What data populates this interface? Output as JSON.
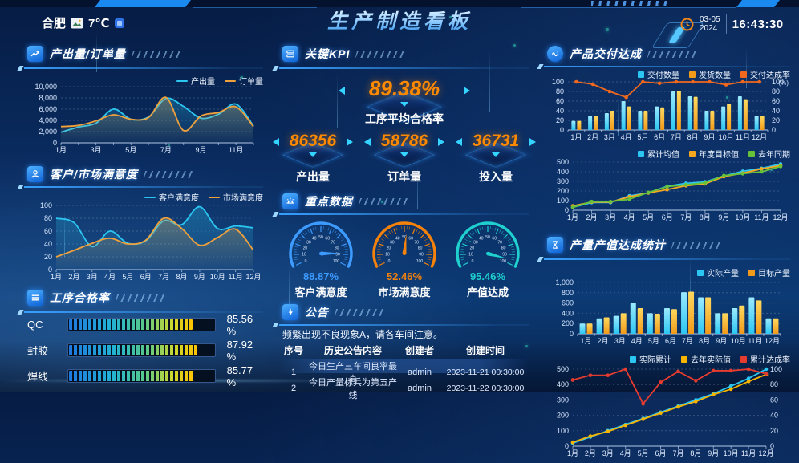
{
  "header": {
    "city": "合肥",
    "temperature": "7℃",
    "title": "生产制造看板",
    "date": "03-05",
    "year": "2024",
    "time": "16:43:30"
  },
  "panels": {
    "output_orders": {
      "title": "产出量/订单量"
    },
    "satisfaction": {
      "title": "客户/市场满意度"
    },
    "pass_rate": {
      "title": "工序合格率"
    },
    "kpi": {
      "title": "关键KPI",
      "main": {
        "value": "89.38%",
        "label": "工序平均合格率"
      },
      "items": [
        {
          "value": "86356",
          "label": "产出量"
        },
        {
          "value": "58786",
          "label": "订单量"
        },
        {
          "value": "36731",
          "label": "投入量"
        }
      ]
    },
    "key_data": {
      "title": "重点数据",
      "gauges": [
        {
          "value": 88.87,
          "display": "88.87%",
          "label": "客户满意度",
          "color": "#3d9bff"
        },
        {
          "value": 52.46,
          "display": "52.46%",
          "label": "市场满意度",
          "color": "#f5820b"
        },
        {
          "value": 95.46,
          "display": "95.46%",
          "label": "产值达成",
          "color": "#1fd0cf"
        }
      ]
    },
    "notice": {
      "title": "公告",
      "marquee": "频繁出现不良现象A，请各车间注意。",
      "table": {
        "headers": [
          "序号",
          "历史公告内容",
          "创建者",
          "创建时间"
        ],
        "rows": [
          [
            "1",
            "今日生产三车间良率最高",
            "admin",
            "2023-11-21 00:30:00"
          ],
          [
            "2",
            "今日产量标兵为第五产线",
            "admin",
            "2023-11-22 00:30:00"
          ]
        ]
      }
    },
    "delivery": {
      "title": "产品交付达成"
    },
    "production": {
      "title": "产量产值达成统计"
    }
  },
  "process_rates": [
    {
      "label": "QC",
      "pct": 85.56,
      "display": "85.56 %"
    },
    {
      "label": "封胶",
      "pct": 87.92,
      "display": "87.92 %"
    },
    {
      "label": "焊线",
      "pct": 85.77,
      "display": "85.77 %"
    }
  ],
  "chart_data": [
    {
      "id": "output_orders",
      "type": "line",
      "title": "产出量/订单量",
      "categories": [
        "1月",
        "2月",
        "3月",
        "4月",
        "5月",
        "6月",
        "7月",
        "8月",
        "9月",
        "10月",
        "11月",
        "12月"
      ],
      "xtick_every": 2,
      "ylim": [
        0,
        10000
      ],
      "yticks": [
        0,
        2000,
        4000,
        6000,
        8000,
        10000
      ],
      "legend_marker": "line",
      "series": [
        {
          "name": "产出量",
          "color": "#2bc7f2",
          "smooth": true,
          "area": true,
          "values": [
            1900,
            2800,
            3500,
            6000,
            4200,
            4600,
            7900,
            6500,
            4400,
            5100,
            6900,
            3000
          ]
        },
        {
          "name": "订单量",
          "color": "#f0a13c",
          "smooth": true,
          "area": true,
          "values": [
            2900,
            3100,
            3900,
            5000,
            4200,
            4500,
            8100,
            2200,
            4800,
            5400,
            6400,
            2900
          ]
        }
      ]
    },
    {
      "id": "satisfaction",
      "type": "line",
      "title": "客户/市场满意度",
      "categories": [
        "1月",
        "2月",
        "3月",
        "4月",
        "5月",
        "6月",
        "7月",
        "8月",
        "9月",
        "10月",
        "11月",
        "12月"
      ],
      "xtick_every": 1,
      "ylim": [
        0,
        100
      ],
      "yticks": [
        0,
        20,
        40,
        60,
        80,
        100
      ],
      "legend_marker": "line",
      "series": [
        {
          "name": "客户满意度",
          "color": "#2bc7f2",
          "smooth": true,
          "area": true,
          "values": [
            80,
            73,
            36,
            60,
            41,
            45,
            76,
            70,
            98,
            64,
            68,
            65
          ]
        },
        {
          "name": "市场满意度",
          "color": "#f0a13c",
          "smooth": true,
          "area": true,
          "values": [
            20,
            30,
            41,
            49,
            40,
            46,
            80,
            64,
            38,
            50,
            63,
            30
          ]
        }
      ]
    },
    {
      "id": "delivery",
      "type": "bar",
      "title": "产品交付达成",
      "categories": [
        "1月",
        "2月",
        "3月",
        "4月",
        "5月",
        "6月",
        "7月",
        "8月",
        "9月",
        "10月",
        "11月",
        "12月"
      ],
      "xtick_every": 1,
      "ylim": [
        0,
        100
      ],
      "yticks": [
        0,
        20,
        40,
        60,
        80,
        100
      ],
      "y2lim": [
        0,
        100
      ],
      "y2ticks": [
        0,
        20,
        40,
        60,
        80,
        100
      ],
      "y2label": "(%)",
      "legend_marker": "rect",
      "series": [
        {
          "name": "交付数量",
          "type": "bar",
          "color": "#2bc7f2",
          "color2": "#9beaff",
          "values": [
            19,
            29,
            35,
            60,
            40,
            49,
            80,
            70,
            40,
            49,
            70,
            29
          ]
        },
        {
          "name": "发货数量",
          "type": "bar",
          "color": "#f29a1a",
          "color2": "#ffd95e",
          "values": [
            19,
            29,
            40,
            49,
            40,
            47,
            81,
            69,
            40,
            54,
            64,
            29
          ]
        },
        {
          "name": "交付达成率",
          "type": "line",
          "axis": "right",
          "color": "#f0681d",
          "marker": true,
          "values": [
            100,
            95,
            80,
            68,
            100,
            97,
            100,
            100,
            100,
            94,
            100,
            100
          ]
        }
      ]
    },
    {
      "id": "cumulative",
      "type": "line",
      "title": "",
      "categories": [
        "1月",
        "2月",
        "3月",
        "4月",
        "5月",
        "6月",
        "7月",
        "8月",
        "9月",
        "10月",
        "11月",
        "12月"
      ],
      "xtick_every": 1,
      "ylim": [
        0,
        500
      ],
      "yticks": [
        0,
        100,
        200,
        300,
        400,
        500
      ],
      "legend_marker": "rect",
      "series": [
        {
          "name": "累计均值",
          "color": "#2bc7f2",
          "marker": true,
          "values": [
            30,
            80,
            80,
            150,
            180,
            250,
            280,
            295,
            355,
            405,
            435,
            480
          ]
        },
        {
          "name": "年度目标值",
          "color": "#f7a820",
          "marker": true,
          "values": [
            45,
            85,
            85,
            140,
            180,
            215,
            255,
            275,
            350,
            385,
            430,
            465
          ]
        },
        {
          "name": "去年同期",
          "color": "#67c23a",
          "marker": true,
          "values": [
            30,
            90,
            90,
            115,
            185,
            245,
            265,
            285,
            360,
            380,
            400,
            455
          ]
        }
      ]
    },
    {
      "id": "production",
      "type": "bar",
      "title": "产量产值达成统计",
      "categories": [
        "1月",
        "2月",
        "3月",
        "4月",
        "5月",
        "6月",
        "7月",
        "8月",
        "9月",
        "10月",
        "11月",
        "12月"
      ],
      "xtick_every": 1,
      "ylim": [
        0,
        1000
      ],
      "yticks": [
        0,
        200,
        400,
        600,
        800,
        1000
      ],
      "legend_marker": "rect",
      "series": [
        {
          "name": "实际产量",
          "type": "bar",
          "color": "#2bc7f2",
          "color2": "#9beaff",
          "values": [
            200,
            300,
            350,
            600,
            400,
            500,
            810,
            710,
            400,
            500,
            710,
            300
          ]
        },
        {
          "name": "目标产量",
          "type": "bar",
          "color": "#f29a1a",
          "color2": "#ffd95e",
          "values": [
            200,
            320,
            400,
            500,
            390,
            480,
            820,
            710,
            400,
            550,
            650,
            300
          ]
        }
      ]
    },
    {
      "id": "cumulative_rate",
      "type": "line",
      "title": "",
      "categories": [
        "1月",
        "2月",
        "3月",
        "4月",
        "5月",
        "6月",
        "7月",
        "8月",
        "9月",
        "10月",
        "11月",
        "12月"
      ],
      "xtick_every": 1,
      "ylim": [
        0,
        500
      ],
      "yticks": [
        0,
        100,
        200,
        300,
        400,
        500
      ],
      "y2lim": [
        0,
        100
      ],
      "y2ticks": [
        0,
        20,
        40,
        60,
        80,
        100
      ],
      "legend_marker": "rect",
      "series": [
        {
          "name": "实际累计",
          "color": "#2bc7f2",
          "marker": true,
          "values": [
            20,
            60,
            100,
            140,
            180,
            220,
            260,
            300,
            340,
            390,
            440,
            500
          ]
        },
        {
          "name": "去年实际值",
          "color": "#f7b500",
          "marker": true,
          "values": [
            25,
            65,
            95,
            135,
            175,
            215,
            255,
            290,
            335,
            370,
            420,
            465
          ]
        },
        {
          "name": "累计达成率",
          "axis": "right",
          "color": "#e63c2f",
          "marker": true,
          "values": [
            86,
            92,
            92,
            100,
            55,
            83,
            97,
            85,
            98,
            98,
            100,
            94
          ]
        }
      ]
    }
  ]
}
